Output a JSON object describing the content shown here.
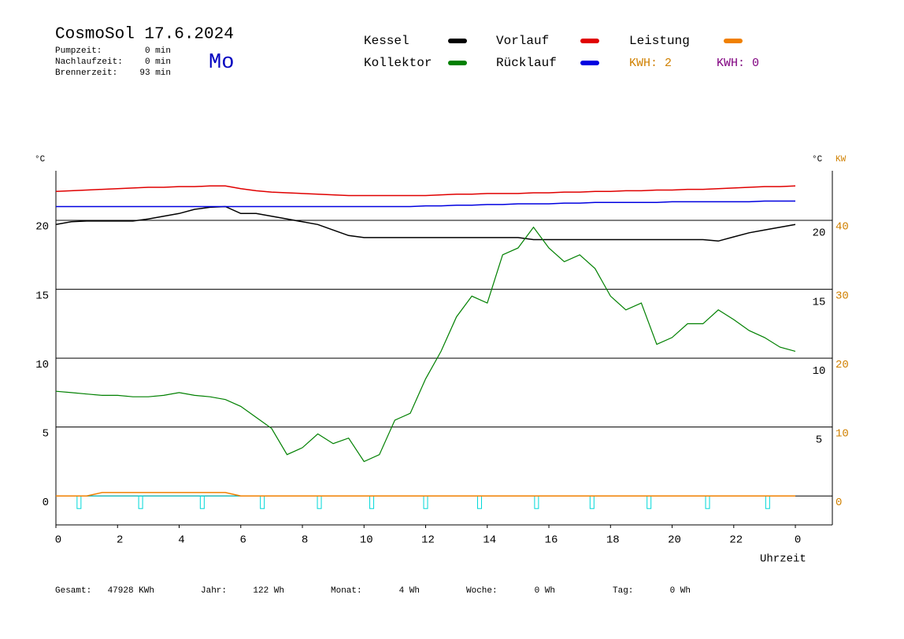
{
  "chart_data": {
    "type": "line",
    "title": "CosmoSol 17.6.2024",
    "weekday": "Mo",
    "info": [
      {
        "label": "Pumpzeit:",
        "value": "0 min"
      },
      {
        "label": "Nachlaufzeit:",
        "value": "0 min"
      },
      {
        "label": "Brennerzeit:",
        "value": "93 min"
      }
    ],
    "kwh": [
      "KWH: 2",
      "KWH: 0"
    ],
    "y_unit": "°C",
    "y2_unit_left": "°C",
    "y2_unit": "KW",
    "x_label": "Uhrzeit",
    "x": [
      0,
      0.5,
      1,
      1.5,
      2,
      2.5,
      3,
      3.5,
      4,
      4.5,
      5,
      5.5,
      6,
      6.5,
      7,
      7.5,
      8,
      8.5,
      9,
      9.5,
      10,
      10.5,
      11,
      11.5,
      12,
      12.5,
      13,
      13.5,
      14,
      14.5,
      15,
      15.5,
      16,
      16.5,
      17,
      17.5,
      18,
      18.5,
      19,
      19.5,
      20,
      20.5,
      21,
      21.5,
      22,
      22.5,
      23,
      23.5,
      24
    ],
    "series": [
      {
        "name": "Kessel",
        "color": "#000000",
        "values": [
          19.7,
          19.9,
          19.95,
          19.95,
          19.95,
          19.95,
          20.1,
          20.3,
          20.5,
          20.8,
          20.95,
          21.0,
          20.5,
          20.5,
          20.3,
          20.1,
          19.9,
          19.7,
          19.3,
          18.9,
          18.75,
          18.75,
          18.75,
          18.75,
          18.75,
          18.75,
          18.75,
          18.75,
          18.75,
          18.75,
          18.75,
          18.6,
          18.6,
          18.6,
          18.6,
          18.6,
          18.6,
          18.6,
          18.6,
          18.6,
          18.6,
          18.6,
          18.6,
          18.5,
          18.8,
          19.1,
          19.3,
          19.5,
          19.7
        ]
      },
      {
        "name": "Vorlauf",
        "color": "#e00000",
        "values": [
          22.1,
          22.15,
          22.2,
          22.25,
          22.3,
          22.35,
          22.4,
          22.4,
          22.45,
          22.45,
          22.5,
          22.5,
          22.3,
          22.15,
          22.05,
          22.0,
          21.95,
          21.9,
          21.85,
          21.8,
          21.8,
          21.8,
          21.8,
          21.8,
          21.8,
          21.85,
          21.9,
          21.9,
          21.95,
          21.95,
          21.95,
          22.0,
          22.0,
          22.05,
          22.05,
          22.1,
          22.1,
          22.15,
          22.15,
          22.2,
          22.2,
          22.25,
          22.25,
          22.3,
          22.35,
          22.4,
          22.45,
          22.45,
          22.5
        ]
      },
      {
        "name": "Leistung",
        "color": "#f08000",
        "axis": "y2",
        "values": [
          0,
          0,
          0,
          0.5,
          0.5,
          0.5,
          0.5,
          0.5,
          0.5,
          0.5,
          0.5,
          0.5,
          0,
          0,
          0,
          0,
          0,
          0,
          0,
          0,
          0,
          0,
          0,
          0,
          0,
          0,
          0,
          0,
          0,
          0,
          0,
          0,
          0,
          0,
          0,
          0,
          0,
          0,
          0,
          0,
          0,
          0,
          0,
          0,
          0,
          0,
          0,
          0,
          0
        ]
      },
      {
        "name": "Kollektor",
        "color": "#008000",
        "values": [
          7.6,
          7.5,
          7.4,
          7.3,
          7.3,
          7.2,
          7.2,
          7.3,
          7.5,
          7.3,
          7.2,
          7.0,
          6.5,
          5.7,
          4.9,
          3.0,
          3.5,
          4.5,
          3.8,
          4.2,
          2.5,
          3.0,
          5.5,
          6.0,
          8.5,
          10.5,
          13.0,
          14.5,
          14.0,
          17.5,
          18.0,
          19.5,
          18.0,
          17.0,
          17.5,
          16.5,
          14.5,
          13.5,
          14.0,
          11.0,
          11.5,
          12.5,
          12.5,
          13.5,
          12.8,
          12.0,
          11.5,
          10.8,
          10.5
        ]
      },
      {
        "name": "Rücklauf",
        "color": "#0000e0",
        "values": [
          21.0,
          21.0,
          21.0,
          21.0,
          21.0,
          21.0,
          21.0,
          21.0,
          21.0,
          21.0,
          21.0,
          21.0,
          21.0,
          21.0,
          21.0,
          21.0,
          21.0,
          21.0,
          21.0,
          21.0,
          21.0,
          21.0,
          21.0,
          21.0,
          21.05,
          21.05,
          21.1,
          21.1,
          21.15,
          21.15,
          21.2,
          21.2,
          21.2,
          21.25,
          21.25,
          21.3,
          21.3,
          21.3,
          21.3,
          21.3,
          21.35,
          21.35,
          21.35,
          21.35,
          21.35,
          21.35,
          21.4,
          21.4,
          21.4
        ]
      }
    ],
    "pump_color": "#00d8d8",
    "pump_pulses": [
      0.75,
      2.75,
      4.75,
      6.7,
      8.55,
      10.25,
      12,
      13.75,
      15.6,
      17.4,
      19.25,
      21.15,
      23.1
    ],
    "xlim": [
      0,
      25.2
    ],
    "xticks": [
      0,
      2,
      4,
      6,
      8,
      10,
      12,
      14,
      16,
      18,
      20,
      22,
      {
        "value": 24,
        "label": "0"
      }
    ],
    "ylim": [
      -2.1,
      23.6
    ],
    "yticks": [
      0,
      5,
      10,
      15,
      20
    ],
    "y2lim": [
      -4.2,
      47.2
    ],
    "y2ticks": [
      0,
      10,
      20,
      30,
      40
    ],
    "grid": true,
    "totals": [
      {
        "label": "Gesamt:",
        "value": "47928 KWh"
      },
      {
        "label": "Jahr:",
        "value": "122 Wh"
      },
      {
        "label": "Monat:",
        "value": "4 Wh"
      },
      {
        "label": "Woche:",
        "value": "0 Wh"
      },
      {
        "label": "Tag:",
        "value": "0 Wh"
      }
    ]
  }
}
